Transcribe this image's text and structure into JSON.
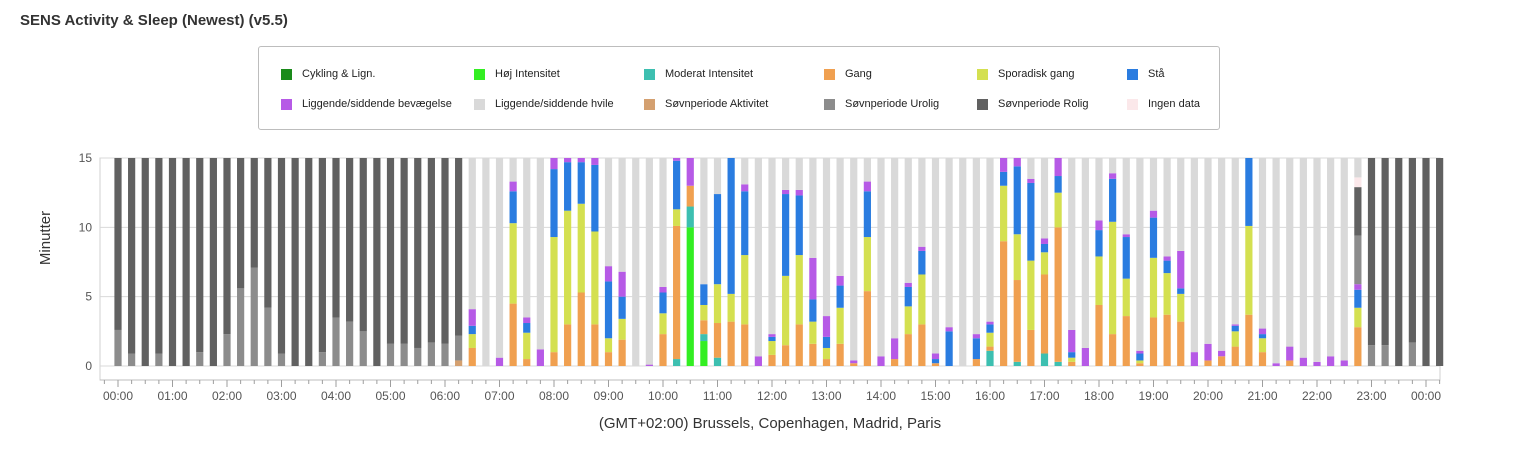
{
  "page": {
    "title": "SENS Activity & Sleep (Newest) (v5.5)"
  },
  "legend": [
    {
      "label": "Cykling & Lign.",
      "color": "#1a8a1a"
    },
    {
      "label": "Høj Intensitet",
      "color": "#33ee22"
    },
    {
      "label": "Moderat Intensitet",
      "color": "#3dbfb0"
    },
    {
      "label": "Gang",
      "color": "#f0a050"
    },
    {
      "label": "Sporadisk gang",
      "color": "#d4e050"
    },
    {
      "label": "Stå",
      "color": "#2a7ce0"
    },
    {
      "label": "Liggende/siddende bevægelse",
      "color": "#b65ae6"
    },
    {
      "label": "Liggende/siddende hvile",
      "color": "#d9d9d9"
    },
    {
      "label": "Søvnperiode Aktivitet",
      "color": "#d4a070"
    },
    {
      "label": "Søvnperiode Urolig",
      "color": "#8c8c8c"
    },
    {
      "label": "Søvnperiode Rolig",
      "color": "#616161"
    },
    {
      "label": "Ingen data",
      "color": "#fbe8ea"
    }
  ],
  "chart_data": {
    "type": "bar",
    "stacked": true,
    "xlabel": "(GMT+02:00) Brussels, Copenhagen, Madrid, Paris",
    "ylabel": "Minutter",
    "ylim": [
      0,
      15
    ],
    "yticks": [
      0,
      5,
      10,
      15
    ],
    "xticks": [
      "00:00",
      "01:00",
      "02:00",
      "03:00",
      "04:00",
      "05:00",
      "06:00",
      "07:00",
      "08:00",
      "09:00",
      "10:00",
      "11:00",
      "12:00",
      "13:00",
      "14:00",
      "15:00",
      "16:00",
      "17:00",
      "18:00",
      "19:00",
      "20:00",
      "21:00",
      "22:00",
      "23:00",
      "00:00"
    ],
    "bar_interval_minutes": 15,
    "grid": true,
    "series_order": [
      "Cykling & Lign.",
      "Høj Intensitet",
      "Moderat Intensitet",
      "Gang",
      "Sporadisk gang",
      "Stå",
      "Liggende/siddende bevægelse",
      "Søvnperiode Aktivitet",
      "Søvnperiode Urolig",
      "Søvnperiode Rolig",
      "Ingen data",
      "Liggende/siddende hvile"
    ],
    "bars": [
      {
        "time": "00:00",
        "Søvnperiode Urolig": 2.6,
        "Søvnperiode Rolig": 12.4
      },
      {
        "time": "00:15",
        "Søvnperiode Urolig": 0.9,
        "Søvnperiode Rolig": 14.1
      },
      {
        "time": "00:30",
        "Søvnperiode Rolig": 15
      },
      {
        "time": "00:45",
        "Søvnperiode Urolig": 0.9,
        "Søvnperiode Rolig": 14.1
      },
      {
        "time": "01:00",
        "Søvnperiode Rolig": 15
      },
      {
        "time": "01:15",
        "Søvnperiode Rolig": 15
      },
      {
        "time": "01:30",
        "Søvnperiode Urolig": 1.0,
        "Søvnperiode Rolig": 14.0
      },
      {
        "time": "01:45",
        "Søvnperiode Rolig": 15
      },
      {
        "time": "02:00",
        "Søvnperiode Urolig": 2.3,
        "Søvnperiode Rolig": 12.7
      },
      {
        "time": "02:15",
        "Søvnperiode Urolig": 5.6,
        "Søvnperiode Rolig": 9.4
      },
      {
        "time": "02:30",
        "Søvnperiode Urolig": 7.1,
        "Søvnperiode Rolig": 7.9
      },
      {
        "time": "02:45",
        "Søvnperiode Urolig": 4.2,
        "Søvnperiode Rolig": 10.8
      },
      {
        "time": "03:00",
        "Søvnperiode Urolig": 0.9,
        "Søvnperiode Rolig": 14.1
      },
      {
        "time": "03:15",
        "Søvnperiode Rolig": 15
      },
      {
        "time": "03:30",
        "Søvnperiode Rolig": 15
      },
      {
        "time": "03:45",
        "Søvnperiode Urolig": 1.0,
        "Søvnperiode Rolig": 14.0
      },
      {
        "time": "04:00",
        "Søvnperiode Urolig": 3.5,
        "Søvnperiode Rolig": 11.5
      },
      {
        "time": "04:15",
        "Søvnperiode Urolig": 3.2,
        "Søvnperiode Rolig": 11.8
      },
      {
        "time": "04:30",
        "Søvnperiode Urolig": 2.5,
        "Søvnperiode Rolig": 12.5
      },
      {
        "time": "04:45",
        "Søvnperiode Rolig": 15
      },
      {
        "time": "05:00",
        "Søvnperiode Urolig": 1.6,
        "Søvnperiode Rolig": 13.4
      },
      {
        "time": "05:15",
        "Søvnperiode Urolig": 1.6,
        "Søvnperiode Rolig": 13.4
      },
      {
        "time": "05:30",
        "Søvnperiode Urolig": 1.3,
        "Søvnperiode Rolig": 13.7
      },
      {
        "time": "05:45",
        "Søvnperiode Urolig": 1.7,
        "Søvnperiode Rolig": 13.3
      },
      {
        "time": "06:00",
        "Søvnperiode Urolig": 1.6,
        "Søvnperiode Rolig": 13.4
      },
      {
        "time": "06:15",
        "Søvnperiode Aktivitet": 0.4,
        "Søvnperiode Urolig": 1.8,
        "Søvnperiode Rolig": 12.8
      },
      {
        "time": "06:30",
        "Gang": 1.3,
        "Sporadisk gang": 1.0,
        "Stå": 0.6,
        "Liggende/siddende bevægelse": 1.2,
        "Liggende/siddende hvile": 10.9
      },
      {
        "time": "06:45",
        "Liggende/siddende hvile": 15
      },
      {
        "time": "07:00",
        "Liggende/siddende bevægelse": 0.6,
        "Liggende/siddende hvile": 14.4
      },
      {
        "time": "07:15",
        "Gang": 4.5,
        "Sporadisk gang": 5.8,
        "Stå": 2.3,
        "Liggende/siddende bevægelse": 0.7,
        "Liggende/siddende hvile": 1.7
      },
      {
        "time": "07:30",
        "Gang": 0.5,
        "Sporadisk gang": 1.9,
        "Stå": 0.7,
        "Liggende/siddende bevægelse": 0.4,
        "Liggende/siddende hvile": 11.5
      },
      {
        "time": "07:45",
        "Liggende/siddende bevægelse": 1.2,
        "Liggende/siddende hvile": 13.8
      },
      {
        "time": "08:00",
        "Gang": 1.0,
        "Sporadisk gang": 8.3,
        "Stå": 4.9,
        "Liggende/siddende bevægelse": 0.8
      },
      {
        "time": "08:15",
        "Gang": 3.0,
        "Sporadisk gang": 8.2,
        "Stå": 3.5,
        "Liggende/siddende bevægelse": 0.3
      },
      {
        "time": "08:30",
        "Gang": 5.3,
        "Sporadisk gang": 6.4,
        "Stå": 3.0,
        "Liggende/siddende bevægelse": 0.3
      },
      {
        "time": "08:45",
        "Gang": 3.0,
        "Sporadisk gang": 6.7,
        "Stå": 4.8,
        "Liggende/siddende bevægelse": 0.5
      },
      {
        "time": "09:00",
        "Gang": 1.0,
        "Sporadisk gang": 1.0,
        "Stå": 4.1,
        "Liggende/siddende bevægelse": 1.1,
        "Liggende/siddende hvile": 7.8
      },
      {
        "time": "09:15",
        "Gang": 1.9,
        "Sporadisk gang": 1.5,
        "Stå": 1.6,
        "Liggende/siddende bevægelse": 1.8,
        "Liggende/siddende hvile": 8.2
      },
      {
        "time": "09:30",
        "Liggende/siddende hvile": 15
      },
      {
        "time": "09:45",
        "Liggende/siddende bevægelse": 0.1,
        "Liggende/siddende hvile": 14.9
      },
      {
        "time": "10:00",
        "Gang": 2.3,
        "Sporadisk gang": 1.5,
        "Stå": 1.5,
        "Liggende/siddende bevægelse": 0.4,
        "Liggende/siddende hvile": 9.3
      },
      {
        "time": "10:15",
        "Moderat Intensitet": 0.5,
        "Gang": 9.6,
        "Sporadisk gang": 1.2,
        "Stå": 3.5,
        "Liggende/siddende bevægelse": 0.2
      },
      {
        "time": "10:30",
        "Høj Intensitet": 10.0,
        "Moderat Intensitet": 1.5,
        "Gang": 1.5,
        "Liggende/siddende bevægelse": 2.0
      },
      {
        "time": "10:45",
        "Høj Intensitet": 1.8,
        "Moderat Intensitet": 0.5,
        "Gang": 1.0,
        "Sporadisk gang": 1.1,
        "Stå": 1.5,
        "Liggende/siddende hvile": 9.1
      },
      {
        "time": "11:00",
        "Moderat Intensitet": 0.6,
        "Gang": 2.5,
        "Sporadisk gang": 2.8,
        "Stå": 6.5,
        "Liggende/siddende hvile": 2.6
      },
      {
        "time": "11:15",
        "Gang": 3.2,
        "Sporadisk gang": 2.0,
        "Stå": 9.8
      },
      {
        "time": "11:30",
        "Gang": 3.0,
        "Sporadisk gang": 5.0,
        "Stå": 4.6,
        "Liggende/siddende bevægelse": 0.5,
        "Liggende/siddende hvile": 1.9
      },
      {
        "time": "11:45",
        "Liggende/siddende bevægelse": 0.7,
        "Liggende/siddende hvile": 14.3
      },
      {
        "time": "12:00",
        "Gang": 0.8,
        "Sporadisk gang": 1.0,
        "Stå": 0.3,
        "Liggende/siddende bevægelse": 0.2,
        "Liggende/siddende hvile": 12.7
      },
      {
        "time": "12:15",
        "Gang": 1.5,
        "Sporadisk gang": 5.0,
        "Stå": 5.9,
        "Liggende/siddende bevægelse": 0.3,
        "Liggende/siddende hvile": 2.3
      },
      {
        "time": "12:30",
        "Gang": 3.0,
        "Sporadisk gang": 5.0,
        "Stå": 4.3,
        "Liggende/siddende bevægelse": 0.4,
        "Liggende/siddende hvile": 2.3
      },
      {
        "time": "12:45",
        "Gang": 1.6,
        "Sporadisk gang": 1.6,
        "Stå": 1.6,
        "Liggende/siddende bevægelse": 3.0,
        "Liggende/siddende hvile": 7.2
      },
      {
        "time": "13:00",
        "Gang": 0.5,
        "Sporadisk gang": 0.8,
        "Stå": 0.8,
        "Liggende/siddende bevægelse": 1.5,
        "Liggende/siddende hvile": 11.4
      },
      {
        "time": "13:15",
        "Gang": 1.6,
        "Sporadisk gang": 2.6,
        "Stå": 1.6,
        "Liggende/siddende bevægelse": 0.7,
        "Liggende/siddende hvile": 8.5
      },
      {
        "time": "13:30",
        "Gang": 0.2,
        "Liggende/siddende bevægelse": 0.2,
        "Liggende/siddende hvile": 14.6
      },
      {
        "time": "13:45",
        "Gang": 5.4,
        "Sporadisk gang": 3.9,
        "Stå": 3.3,
        "Liggende/siddende bevægelse": 0.7,
        "Liggende/siddende hvile": 1.7
      },
      {
        "time": "14:00",
        "Liggende/siddende bevægelse": 0.7,
        "Liggende/siddende hvile": 14.3
      },
      {
        "time": "14:15",
        "Gang": 0.5,
        "Liggende/siddende bevægelse": 1.5,
        "Liggende/siddende hvile": 13.0
      },
      {
        "time": "14:30",
        "Gang": 2.3,
        "Sporadisk gang": 2.0,
        "Stå": 1.4,
        "Liggende/siddende bevægelse": 0.3,
        "Liggende/siddende hvile": 9.0
      },
      {
        "time": "14:45",
        "Gang": 3.0,
        "Sporadisk gang": 3.6,
        "Stå": 1.7,
        "Liggende/siddende bevægelse": 0.3,
        "Liggende/siddende hvile": 6.4
      },
      {
        "time": "15:00",
        "Gang": 0.2,
        "Stå": 0.3,
        "Liggende/siddende bevægelse": 0.4,
        "Liggende/siddende hvile": 14.1
      },
      {
        "time": "15:15",
        "Stå": 2.5,
        "Liggende/siddende bevægelse": 0.3,
        "Liggende/siddende hvile": 12.2
      },
      {
        "time": "15:30",
        "Liggende/siddende hvile": 15
      },
      {
        "time": "15:45",
        "Gang": 0.5,
        "Stå": 1.5,
        "Liggende/siddende bevægelse": 0.3,
        "Liggende/siddende hvile": 12.7
      },
      {
        "time": "16:00",
        "Moderat Intensitet": 1.1,
        "Gang": 0.3,
        "Sporadisk gang": 1.0,
        "Stå": 0.6,
        "Liggende/siddende bevægelse": 0.2,
        "Liggende/siddende hvile": 11.8
      },
      {
        "time": "16:15",
        "Gang": 9.0,
        "Sporadisk gang": 4.0,
        "Stå": 1.0,
        "Liggende/siddende bevægelse": 1.0
      },
      {
        "time": "16:30",
        "Moderat Intensitet": 0.3,
        "Gang": 5.9,
        "Sporadisk gang": 3.3,
        "Stå": 4.9,
        "Liggende/siddende bevægelse": 0.6
      },
      {
        "time": "16:45",
        "Gang": 2.6,
        "Sporadisk gang": 5.0,
        "Stå": 5.6,
        "Liggende/siddende bevægelse": 0.3,
        "Liggende/siddende hvile": 1.5
      },
      {
        "time": "17:00",
        "Moderat Intensitet": 0.9,
        "Gang": 5.7,
        "Sporadisk gang": 1.6,
        "Stå": 0.6,
        "Liggende/siddende bevægelse": 0.4,
        "Liggende/siddende hvile": 5.8
      },
      {
        "time": "17:15",
        "Moderat Intensitet": 0.3,
        "Gang": 9.7,
        "Sporadisk gang": 2.5,
        "Stå": 1.2,
        "Liggende/siddende bevægelse": 1.3
      },
      {
        "time": "17:30",
        "Gang": 0.3,
        "Sporadisk gang": 0.3,
        "Stå": 0.4,
        "Liggende/siddende bevægelse": 1.6,
        "Liggende/siddende hvile": 12.4
      },
      {
        "time": "17:45",
        "Liggende/siddende bevægelse": 1.3,
        "Liggende/siddende hvile": 13.7
      },
      {
        "time": "18:00",
        "Gang": 4.4,
        "Sporadisk gang": 3.5,
        "Stå": 1.9,
        "Liggende/siddende bevægelse": 0.7,
        "Liggende/siddende hvile": 4.5
      },
      {
        "time": "18:15",
        "Gang": 2.3,
        "Sporadisk gang": 8.1,
        "Stå": 3.1,
        "Liggende/siddende bevægelse": 0.4,
        "Liggende/siddende hvile": 1.1
      },
      {
        "time": "18:30",
        "Gang": 3.6,
        "Sporadisk gang": 2.7,
        "Stå": 3.0,
        "Liggende/siddende bevægelse": 0.2,
        "Liggende/siddende hvile": 5.5
      },
      {
        "time": "18:45",
        "Gang": 0.2,
        "Sporadisk gang": 0.2,
        "Stå": 0.5,
        "Liggende/siddende bevægelse": 0.2,
        "Liggende/siddende hvile": 13.9
      },
      {
        "time": "19:00",
        "Gang": 3.5,
        "Sporadisk gang": 4.3,
        "Stå": 2.9,
        "Liggende/siddende bevægelse": 0.5,
        "Liggende/siddende hvile": 3.8
      },
      {
        "time": "19:15",
        "Gang": 3.7,
        "Sporadisk gang": 3.0,
        "Stå": 0.9,
        "Liggende/siddende bevægelse": 0.3,
        "Liggende/siddende hvile": 7.1
      },
      {
        "time": "19:30",
        "Gang": 3.2,
        "Sporadisk gang": 2.0,
        "Stå": 0.4,
        "Liggende/siddende bevægelse": 2.7,
        "Liggende/siddende hvile": 6.7
      },
      {
        "time": "19:45",
        "Liggende/siddende bevægelse": 1.0,
        "Liggende/siddende hvile": 14.0
      },
      {
        "time": "20:00",
        "Gang": 0.4,
        "Liggende/siddende bevægelse": 1.2,
        "Liggende/siddende hvile": 13.4
      },
      {
        "time": "20:15",
        "Gang": 0.7,
        "Liggende/siddende bevægelse": 0.4,
        "Liggende/siddende hvile": 13.9
      },
      {
        "time": "20:30",
        "Gang": 1.4,
        "Sporadisk gang": 1.1,
        "Stå": 0.4,
        "Liggende/siddende bevægelse": 0.1,
        "Liggende/siddende hvile": 12.0
      },
      {
        "time": "20:45",
        "Gang": 3.7,
        "Sporadisk gang": 6.4,
        "Stå": 4.9
      },
      {
        "time": "21:00",
        "Gang": 1.0,
        "Sporadisk gang": 1.0,
        "Stå": 0.3,
        "Liggende/siddende bevægelse": 0.4,
        "Liggende/siddende hvile": 12.3
      },
      {
        "time": "21:15",
        "Liggende/siddende bevægelse": 0.2,
        "Liggende/siddende hvile": 14.8
      },
      {
        "time": "21:30",
        "Gang": 0.4,
        "Liggende/siddende bevægelse": 1.0,
        "Liggende/siddende hvile": 13.6
      },
      {
        "time": "21:45",
        "Liggende/siddende bevægelse": 0.6,
        "Liggende/siddende hvile": 14.4
      },
      {
        "time": "22:00",
        "Liggende/siddende bevægelse": 0.3,
        "Liggende/siddende hvile": 14.7
      },
      {
        "time": "22:15",
        "Liggende/siddende bevægelse": 0.7,
        "Liggende/siddende hvile": 14.3
      },
      {
        "time": "22:30",
        "Liggende/siddende bevægelse": 0.4,
        "Liggende/siddende hvile": 14.6
      },
      {
        "time": "22:45",
        "Gang": 2.8,
        "Sporadisk gang": 1.4,
        "Stå": 1.3,
        "Liggende/siddende bevægelse": 0.4,
        "Liggende/siddende hvile": 1.4,
        "Ingen data": 0.7,
        "Søvnperiode Urolig": 3.5,
        "Søvnperiode Rolig": 3.5
      },
      {
        "time": "23:00",
        "Søvnperiode Urolig": 1.5,
        "Søvnperiode Rolig": 13.5
      },
      {
        "time": "23:15",
        "Søvnperiode Urolig": 1.5,
        "Søvnperiode Rolig": 13.5
      },
      {
        "time": "23:30",
        "Søvnperiode Rolig": 15
      },
      {
        "time": "23:45",
        "Søvnperiode Urolig": 1.7,
        "Søvnperiode Rolig": 13.3
      },
      {
        "time": "00:00+",
        "Søvnperiode Rolig": 15
      },
      {
        "time": "00:15+",
        "Søvnperiode Rolig": 15
      }
    ]
  }
}
